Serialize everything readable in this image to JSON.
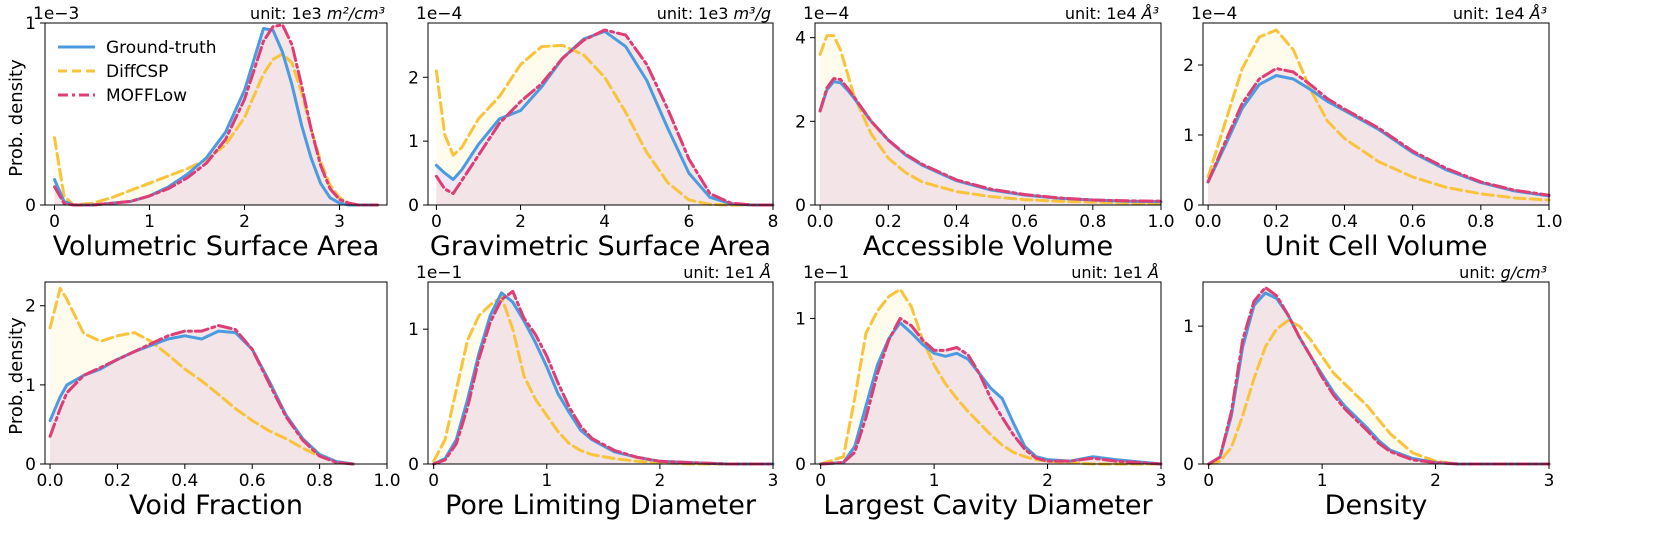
{
  "legend": [
    {
      "name": "Ground-truth",
      "color": "#4a9be0",
      "dash": "solid"
    },
    {
      "name": "DiffCSP",
      "color": "#f9c33b",
      "dash": "dashed"
    },
    {
      "name": "MOFFLow",
      "color": "#de3d75",
      "dash": "dashdot"
    }
  ],
  "y_axis_label": "Prob. density",
  "chart_data": [
    {
      "type": "line",
      "title": "",
      "xlabel": "Volumetric Surface Area",
      "ylabel": "Prob. density",
      "unit_prefix": "unit: 1e3 ",
      "unit_suffix": "m²/cm³",
      "multiplier": "1e−3",
      "xlim": [
        -0.1,
        3.5
      ],
      "ylim": [
        0,
        1.0
      ],
      "xticks": [
        0,
        1,
        2,
        3
      ],
      "xtick_labels": [
        "0",
        "1",
        "2",
        "3"
      ],
      "yticks": [
        0,
        1
      ],
      "ytick_labels": [
        "0",
        "1"
      ],
      "x": [
        0,
        0.1,
        0.2,
        0.4,
        0.6,
        0.8,
        1.0,
        1.2,
        1.4,
        1.6,
        1.8,
        2.0,
        2.1,
        2.2,
        2.3,
        2.4,
        2.5,
        2.6,
        2.7,
        2.8,
        2.9,
        3.0,
        3.1,
        3.2,
        3.4
      ],
      "series": [
        {
          "name": "Ground-truth",
          "values": [
            0.14,
            0.02,
            0.0,
            0.0,
            0.01,
            0.02,
            0.05,
            0.1,
            0.17,
            0.26,
            0.4,
            0.63,
            0.8,
            0.97,
            0.96,
            0.84,
            0.66,
            0.44,
            0.26,
            0.12,
            0.04,
            0.01,
            0.0,
            0.0,
            0.0
          ]
        },
        {
          "name": "DiffCSP",
          "values": [
            0.37,
            0.05,
            0.0,
            0.01,
            0.04,
            0.08,
            0.12,
            0.16,
            0.2,
            0.25,
            0.33,
            0.48,
            0.6,
            0.72,
            0.8,
            0.83,
            0.78,
            0.62,
            0.42,
            0.24,
            0.11,
            0.04,
            0.01,
            0.0,
            0.0
          ]
        },
        {
          "name": "MOFFLow",
          "values": [
            0.1,
            0.01,
            0.0,
            0.0,
            0.01,
            0.02,
            0.05,
            0.09,
            0.15,
            0.23,
            0.36,
            0.58,
            0.74,
            0.9,
            0.98,
            0.99,
            0.88,
            0.66,
            0.42,
            0.22,
            0.09,
            0.03,
            0.01,
            0.0,
            0.0
          ]
        }
      ]
    },
    {
      "type": "line",
      "title": "",
      "xlabel": "Gravimetric Surface Area",
      "ylabel": "",
      "unit_prefix": "unit: 1e3 ",
      "unit_suffix": "m³/g",
      "multiplier": "1e−4",
      "xlim": [
        -0.2,
        8.0
      ],
      "ylim": [
        0,
        2.85
      ],
      "xticks": [
        0,
        2,
        4,
        6,
        8
      ],
      "xtick_labels": [
        "0",
        "2",
        "4",
        "6",
        "8"
      ],
      "yticks": [
        0,
        1,
        2
      ],
      "ytick_labels": [
        "0",
        "1",
        "2"
      ],
      "x": [
        0,
        0.2,
        0.4,
        0.6,
        1.0,
        1.5,
        2.0,
        2.5,
        3.0,
        3.5,
        4.0,
        4.5,
        5.0,
        5.5,
        6.0,
        6.5,
        7.0,
        7.5,
        8.0
      ],
      "series": [
        {
          "name": "Ground-truth",
          "values": [
            0.62,
            0.5,
            0.4,
            0.55,
            0.95,
            1.35,
            1.48,
            1.85,
            2.3,
            2.6,
            2.72,
            2.48,
            1.95,
            1.2,
            0.5,
            0.12,
            0.02,
            0.0,
            0.0
          ]
        },
        {
          "name": "DiffCSP",
          "values": [
            2.1,
            1.1,
            0.78,
            0.9,
            1.35,
            1.7,
            2.2,
            2.48,
            2.5,
            2.35,
            2.0,
            1.45,
            0.82,
            0.35,
            0.08,
            0.01,
            0.0,
            0.0,
            0.0
          ]
        },
        {
          "name": "MOFFLow",
          "values": [
            0.45,
            0.25,
            0.18,
            0.38,
            0.78,
            1.28,
            1.62,
            1.9,
            2.3,
            2.58,
            2.74,
            2.66,
            2.2,
            1.5,
            0.72,
            0.18,
            0.03,
            0.0,
            0.0
          ]
        }
      ]
    },
    {
      "type": "line",
      "title": "",
      "xlabel": "Accessible Volume",
      "ylabel": "",
      "unit_prefix": "unit: 1e4 ",
      "unit_suffix": "Å³",
      "multiplier": "1e−4",
      "xlim": [
        -0.015,
        1.0
      ],
      "ylim": [
        0,
        4.35
      ],
      "xticks": [
        0,
        0.2,
        0.4,
        0.6,
        0.8,
        1.0
      ],
      "xtick_labels": [
        "0.0",
        "0.2",
        "0.4",
        "0.6",
        "0.8",
        "1.0"
      ],
      "yticks": [
        0,
        2,
        4
      ],
      "ytick_labels": [
        "0",
        "2",
        "4"
      ],
      "x": [
        0,
        0.02,
        0.04,
        0.06,
        0.08,
        0.1,
        0.15,
        0.2,
        0.25,
        0.3,
        0.4,
        0.5,
        0.6,
        0.7,
        0.8,
        0.9,
        1.0
      ],
      "series": [
        {
          "name": "Ground-truth",
          "values": [
            2.25,
            2.75,
            2.95,
            2.92,
            2.75,
            2.55,
            2.0,
            1.55,
            1.2,
            0.95,
            0.58,
            0.36,
            0.24,
            0.16,
            0.12,
            0.09,
            0.08
          ]
        },
        {
          "name": "DiffCSP",
          "values": [
            3.6,
            4.05,
            4.05,
            3.7,
            3.15,
            2.6,
            1.7,
            1.12,
            0.78,
            0.55,
            0.32,
            0.2,
            0.13,
            0.09,
            0.07,
            0.05,
            0.04
          ]
        },
        {
          "name": "MOFFLow",
          "values": [
            2.25,
            2.8,
            3.02,
            3.0,
            2.8,
            2.58,
            2.0,
            1.55,
            1.22,
            0.97,
            0.6,
            0.38,
            0.25,
            0.17,
            0.12,
            0.1,
            0.09
          ]
        }
      ]
    },
    {
      "type": "line",
      "title": "",
      "xlabel": "Unit Cell Volume",
      "ylabel": "",
      "unit_prefix": "unit: 1e4 ",
      "unit_suffix": "Å³",
      "multiplier": "1e−4",
      "xlim": [
        -0.015,
        1.0
      ],
      "ylim": [
        0,
        2.6
      ],
      "xticks": [
        0,
        0.2,
        0.4,
        0.6,
        0.8,
        1.0
      ],
      "xtick_labels": [
        "0.0",
        "0.2",
        "0.4",
        "0.6",
        "0.8",
        "1.0"
      ],
      "yticks": [
        0,
        1,
        2
      ],
      "ytick_labels": [
        "0",
        "1",
        "2"
      ],
      "x": [
        0,
        0.05,
        0.1,
        0.15,
        0.2,
        0.25,
        0.3,
        0.35,
        0.4,
        0.5,
        0.6,
        0.7,
        0.8,
        0.9,
        1.0
      ],
      "series": [
        {
          "name": "Ground-truth",
          "values": [
            0.33,
            0.85,
            1.38,
            1.72,
            1.85,
            1.8,
            1.65,
            1.48,
            1.35,
            1.08,
            0.75,
            0.5,
            0.32,
            0.2,
            0.13
          ]
        },
        {
          "name": "DiffCSP",
          "values": [
            0.4,
            1.18,
            1.95,
            2.4,
            2.5,
            2.22,
            1.65,
            1.2,
            0.95,
            0.62,
            0.4,
            0.25,
            0.16,
            0.1,
            0.07
          ]
        },
        {
          "name": "MOFFLow",
          "values": [
            0.33,
            0.9,
            1.45,
            1.8,
            1.95,
            1.9,
            1.72,
            1.52,
            1.37,
            1.1,
            0.77,
            0.52,
            0.33,
            0.21,
            0.14
          ]
        }
      ]
    },
    {
      "type": "line",
      "title": "",
      "xlabel": "Void Fraction",
      "ylabel": "Prob. density",
      "unit_prefix": "",
      "unit_suffix": "",
      "multiplier": "",
      "xlim": [
        -0.015,
        1.0
      ],
      "ylim": [
        0,
        2.3
      ],
      "xticks": [
        0,
        0.2,
        0.4,
        0.6,
        0.8,
        1.0
      ],
      "xtick_labels": [
        "0.0",
        "0.2",
        "0.4",
        "0.6",
        "0.8",
        "1.0"
      ],
      "yticks": [
        0,
        1,
        2
      ],
      "ytick_labels": [
        "0",
        "1",
        "2"
      ],
      "x": [
        0,
        0.03,
        0.05,
        0.1,
        0.15,
        0.2,
        0.25,
        0.3,
        0.35,
        0.4,
        0.45,
        0.5,
        0.55,
        0.6,
        0.65,
        0.7,
        0.75,
        0.8,
        0.85,
        0.9
      ],
      "series": [
        {
          "name": "Ground-truth",
          "values": [
            0.55,
            0.85,
            1.0,
            1.12,
            1.2,
            1.32,
            1.42,
            1.5,
            1.58,
            1.62,
            1.58,
            1.68,
            1.66,
            1.45,
            1.05,
            0.62,
            0.32,
            0.12,
            0.03,
            0.0
          ]
        },
        {
          "name": "DiffCSP",
          "values": [
            1.72,
            2.22,
            2.08,
            1.65,
            1.55,
            1.62,
            1.66,
            1.55,
            1.38,
            1.2,
            1.05,
            0.88,
            0.7,
            0.55,
            0.42,
            0.32,
            0.2,
            0.1,
            0.02,
            0.0
          ]
        },
        {
          "name": "MOFFLow",
          "values": [
            0.35,
            0.7,
            0.9,
            1.12,
            1.22,
            1.32,
            1.42,
            1.52,
            1.62,
            1.68,
            1.68,
            1.75,
            1.7,
            1.45,
            1.02,
            0.6,
            0.3,
            0.1,
            0.02,
            0.0
          ]
        }
      ]
    },
    {
      "type": "line",
      "title": "",
      "xlabel": "Pore Limiting Diameter",
      "ylabel": "",
      "unit_prefix": "unit: 1e1 ",
      "unit_suffix": "Å",
      "multiplier": "1e−1",
      "xlim": [
        -0.05,
        3.0
      ],
      "ylim": [
        0,
        1.35
      ],
      "xticks": [
        0,
        1,
        2,
        3
      ],
      "xtick_labels": [
        "0",
        "1",
        "2",
        "3"
      ],
      "yticks": [
        0,
        1
      ],
      "ytick_labels": [
        "0",
        "1"
      ],
      "x": [
        0,
        0.1,
        0.2,
        0.3,
        0.4,
        0.5,
        0.6,
        0.7,
        0.8,
        0.9,
        1.0,
        1.1,
        1.2,
        1.3,
        1.4,
        1.6,
        1.8,
        2.0,
        2.3,
        2.6,
        3.0
      ],
      "series": [
        {
          "name": "Ground-truth",
          "values": [
            0.0,
            0.04,
            0.18,
            0.48,
            0.82,
            1.1,
            1.27,
            1.2,
            1.06,
            0.9,
            0.72,
            0.52,
            0.38,
            0.25,
            0.18,
            0.09,
            0.05,
            0.02,
            0.01,
            0.0,
            0.0
          ]
        },
        {
          "name": "DiffCSP",
          "values": [
            0.02,
            0.18,
            0.55,
            0.92,
            1.1,
            1.18,
            1.24,
            1.0,
            0.65,
            0.48,
            0.36,
            0.24,
            0.15,
            0.1,
            0.07,
            0.04,
            0.02,
            0.01,
            0.0,
            0.0,
            0.0
          ]
        },
        {
          "name": "MOFFLow",
          "values": [
            0.0,
            0.03,
            0.15,
            0.42,
            0.78,
            1.05,
            1.22,
            1.28,
            1.08,
            0.96,
            0.8,
            0.6,
            0.42,
            0.28,
            0.19,
            0.1,
            0.05,
            0.02,
            0.01,
            0.0,
            0.0
          ]
        }
      ]
    },
    {
      "type": "line",
      "title": "",
      "xlabel": "Largest Cavity Diameter",
      "ylabel": "",
      "unit_prefix": "unit: 1e1 ",
      "unit_suffix": "Å",
      "multiplier": "1e−1",
      "xlim": [
        -0.05,
        3.0
      ],
      "ylim": [
        0,
        1.25
      ],
      "xticks": [
        0,
        1,
        2,
        3
      ],
      "xtick_labels": [
        "0",
        "1",
        "2",
        "3"
      ],
      "yticks": [
        0,
        1
      ],
      "ytick_labels": [
        "0",
        "1"
      ],
      "x": [
        0,
        0.2,
        0.3,
        0.4,
        0.5,
        0.6,
        0.7,
        0.8,
        0.9,
        1.0,
        1.1,
        1.2,
        1.3,
        1.4,
        1.5,
        1.6,
        1.7,
        1.8,
        1.9,
        2.0,
        2.2,
        2.4,
        2.6,
        3.0
      ],
      "series": [
        {
          "name": "Ground-truth",
          "values": [
            0.0,
            0.01,
            0.12,
            0.4,
            0.68,
            0.86,
            0.97,
            0.9,
            0.82,
            0.76,
            0.74,
            0.76,
            0.72,
            0.62,
            0.52,
            0.45,
            0.28,
            0.12,
            0.05,
            0.03,
            0.02,
            0.05,
            0.03,
            0.0
          ]
        },
        {
          "name": "DiffCSP",
          "values": [
            0.0,
            0.05,
            0.45,
            0.9,
            1.05,
            1.15,
            1.2,
            1.08,
            0.85,
            0.68,
            0.55,
            0.45,
            0.36,
            0.28,
            0.2,
            0.13,
            0.08,
            0.05,
            0.03,
            0.02,
            0.01,
            0.0,
            0.0,
            0.0
          ]
        },
        {
          "name": "MOFFLow",
          "values": [
            0.0,
            0.01,
            0.08,
            0.32,
            0.62,
            0.85,
            1.0,
            0.95,
            0.85,
            0.78,
            0.78,
            0.8,
            0.75,
            0.62,
            0.45,
            0.32,
            0.2,
            0.1,
            0.04,
            0.02,
            0.02,
            0.04,
            0.02,
            0.0
          ]
        }
      ]
    },
    {
      "type": "line",
      "title": "",
      "xlabel": "Density",
      "ylabel": "",
      "unit_prefix": "unit: ",
      "unit_suffix": "g/cm³",
      "multiplier": "",
      "xlim": [
        -0.05,
        3.0
      ],
      "ylim": [
        0,
        1.32
      ],
      "xticks": [
        0,
        1,
        2,
        3
      ],
      "xtick_labels": [
        "0",
        "1",
        "2",
        "3"
      ],
      "yticks": [
        0,
        1
      ],
      "ytick_labels": [
        "0",
        "1"
      ],
      "x": [
        0,
        0.1,
        0.2,
        0.3,
        0.4,
        0.5,
        0.6,
        0.7,
        0.8,
        0.9,
        1.0,
        1.1,
        1.2,
        1.3,
        1.4,
        1.5,
        1.6,
        1.8,
        2.0,
        2.2,
        2.5,
        3.0
      ],
      "series": [
        {
          "name": "Ground-truth",
          "values": [
            0.0,
            0.05,
            0.35,
            0.85,
            1.15,
            1.24,
            1.2,
            1.08,
            0.92,
            0.78,
            0.65,
            0.52,
            0.42,
            0.34,
            0.26,
            0.17,
            0.1,
            0.04,
            0.01,
            0.0,
            0.0,
            0.0
          ]
        },
        {
          "name": "DiffCSP",
          "values": [
            0.0,
            0.02,
            0.12,
            0.35,
            0.62,
            0.85,
            0.98,
            1.04,
            1.0,
            0.9,
            0.78,
            0.66,
            0.58,
            0.5,
            0.42,
            0.32,
            0.22,
            0.08,
            0.02,
            0.0,
            0.0,
            0.0
          ]
        },
        {
          "name": "MOFFLow",
          "values": [
            0.0,
            0.05,
            0.38,
            0.9,
            1.18,
            1.28,
            1.22,
            1.08,
            0.92,
            0.78,
            0.63,
            0.5,
            0.4,
            0.32,
            0.24,
            0.15,
            0.09,
            0.03,
            0.01,
            0.0,
            0.0,
            0.0
          ]
        }
      ]
    }
  ]
}
